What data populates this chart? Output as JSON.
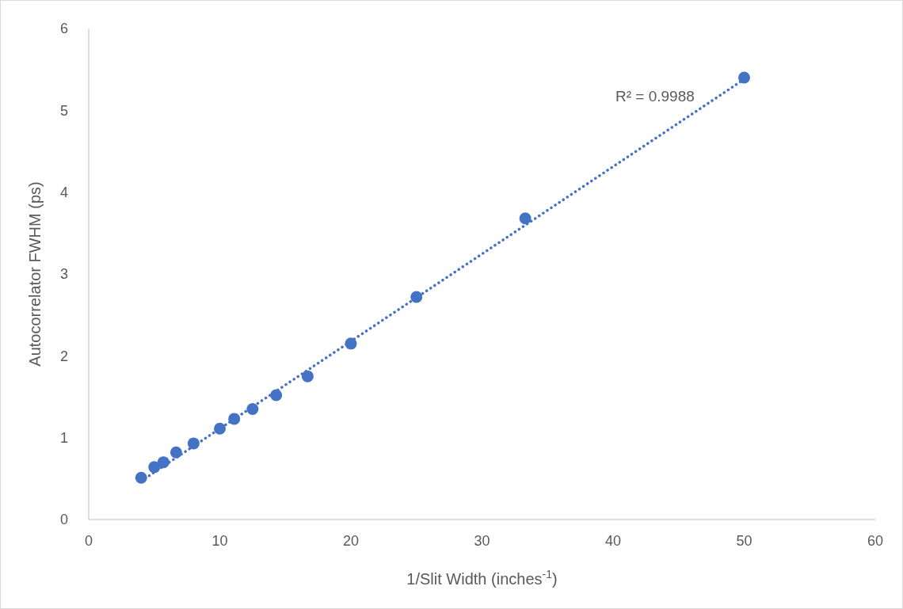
{
  "chart_data": {
    "type": "scatter",
    "xlabel": "1/Slit Width (inches$^{-1}$)",
    "ylabel": "Autocorrelator FWHM (ps)",
    "xlim": [
      0,
      60
    ],
    "xticks": [
      0,
      10,
      20,
      30,
      40,
      50,
      60
    ],
    "ylim": [
      0,
      6
    ],
    "yticks": [
      0,
      1,
      2,
      3,
      4,
      5,
      6
    ],
    "marker": "circle",
    "annotations": [
      "R² = 0.9988"
    ],
    "series": [
      {
        "color": "#4472c4",
        "x": [
          4,
          5,
          5.7,
          6.67,
          8,
          10,
          11.1,
          12.5,
          14.3,
          16.7,
          20,
          25,
          33.3,
          50
        ],
        "values": [
          0.51,
          0.64,
          0.7,
          0.82,
          0.93,
          1.11,
          1.23,
          1.35,
          1.52,
          1.75,
          2.15,
          2.72,
          3.68,
          5.4
        ]
      },
      {
        "type": "line",
        "color": "#4472c4",
        "line_style": "dotted",
        "marker": "none",
        "x": [
          4,
          50
        ],
        "values": [
          0.47,
          5.38
        ]
      }
    ]
  }
}
